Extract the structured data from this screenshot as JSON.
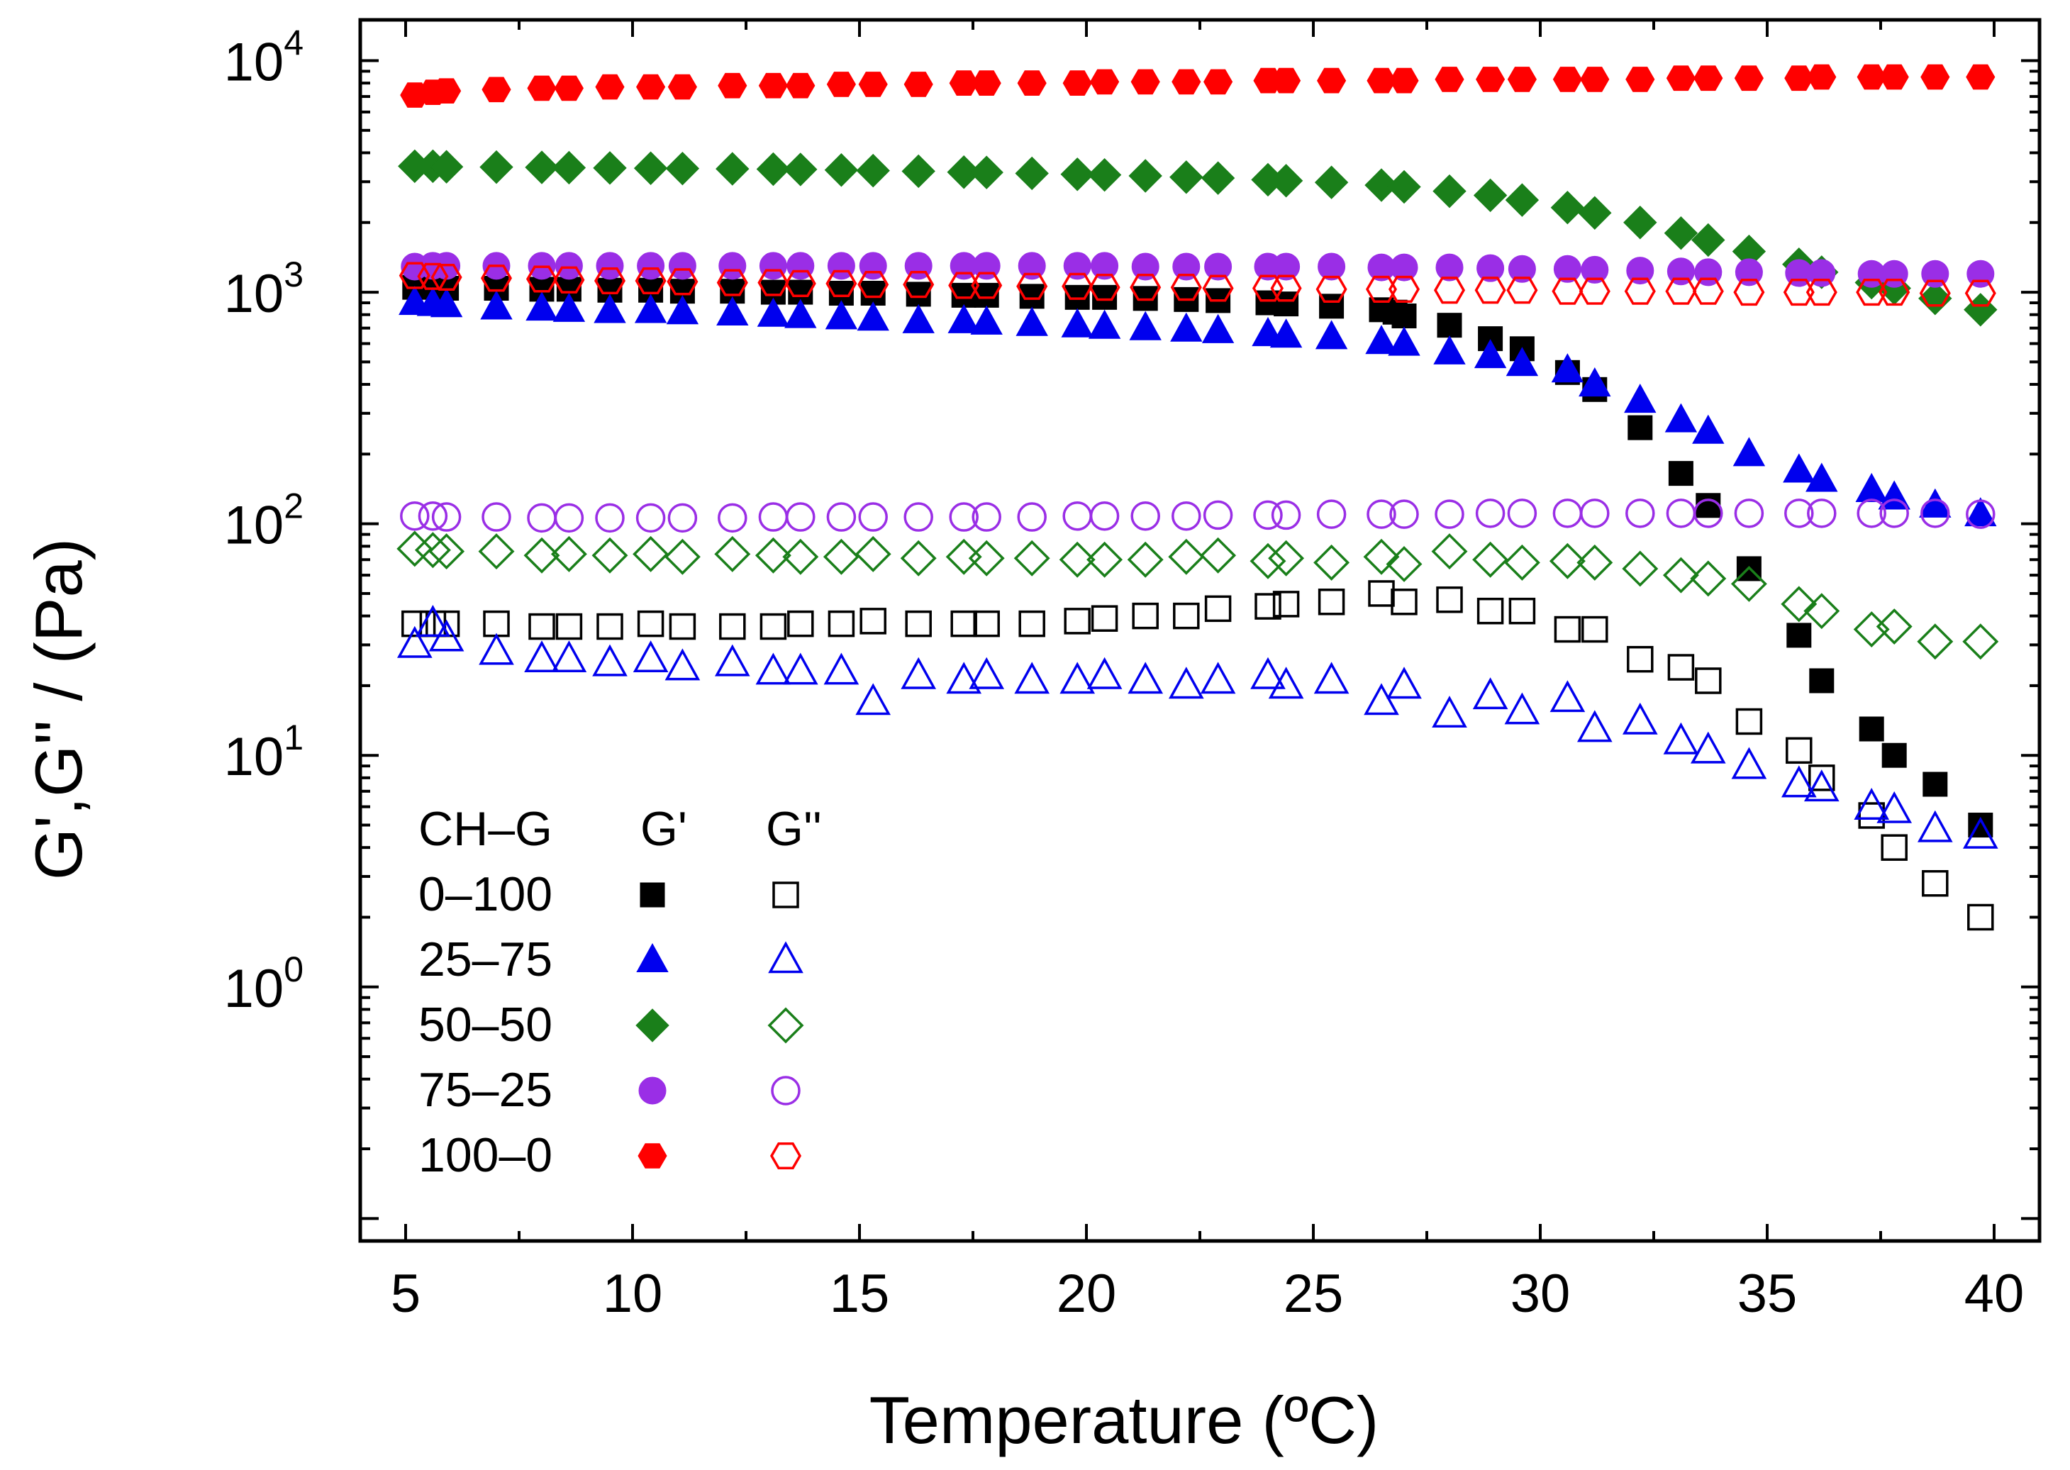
{
  "chart_data": {
    "type": "scatter",
    "title": "",
    "xlabel": "Temperature (ºC)",
    "ylabel": "G',G'' / (Pa)",
    "xlim": [
      4,
      41
    ],
    "ylim": [
      0.08,
      15000
    ],
    "yscale": "log",
    "grid": false,
    "x_ticks": [
      5,
      10,
      15,
      20,
      25,
      30,
      35,
      40
    ],
    "y_ticks": [
      {
        "value": 1,
        "base": "10",
        "exp": "0"
      },
      {
        "value": 10,
        "base": "10",
        "exp": "1"
      },
      {
        "value": 100,
        "base": "10",
        "exp": "2"
      },
      {
        "value": 1000,
        "base": "10",
        "exp": "3"
      },
      {
        "value": 10000,
        "base": "10",
        "exp": "4"
      }
    ],
    "legend": {
      "placement": "bottom-left",
      "header": [
        "CH–G",
        "G'",
        "G''"
      ]
    },
    "series": [
      {
        "name": "0–100",
        "modulus": "G'",
        "marker": "square",
        "filled": true,
        "color": "#000000",
        "x": [
          5.2,
          5.6,
          5.9,
          7.0,
          8.0,
          8.6,
          9.5,
          10.4,
          11.1,
          12.2,
          13.1,
          13.7,
          14.6,
          15.3,
          16.3,
          17.3,
          17.8,
          18.8,
          19.8,
          20.4,
          21.3,
          22.2,
          22.9,
          24.0,
          24.4,
          25.4,
          26.5,
          26.8,
          27.0,
          28.0,
          28.9,
          29.6,
          30.6,
          31.2,
          32.2,
          33.1,
          33.7,
          34.6,
          35.7,
          36.2,
          37.3,
          37.8,
          38.7,
          39.7
        ],
        "y": [
          1050,
          1050,
          1040,
          1040,
          1030,
          1030,
          1020,
          1020,
          1010,
          1010,
          1000,
          1000,
          990,
          990,
          980,
          970,
          970,
          960,
          950,
          950,
          940,
          930,
          920,
          900,
          890,
          870,
          840,
          820,
          790,
          720,
          630,
          570,
          450,
          380,
          260,
          165,
          120,
          64,
          33,
          21,
          13,
          10,
          7.5,
          5
        ]
      },
      {
        "name": "0–100",
        "modulus": "G''",
        "marker": "square",
        "filled": false,
        "color": "#000000",
        "x": [
          5.2,
          5.6,
          5.9,
          7.0,
          8.0,
          8.6,
          9.5,
          10.4,
          11.1,
          12.2,
          13.1,
          13.7,
          14.6,
          15.3,
          16.3,
          17.3,
          17.8,
          18.8,
          19.8,
          20.4,
          21.3,
          22.2,
          22.9,
          24.0,
          24.4,
          25.4,
          26.5,
          27.0,
          28.0,
          28.9,
          29.6,
          30.6,
          31.2,
          32.2,
          33.1,
          33.7,
          34.6,
          35.7,
          36.2,
          37.3,
          37.8,
          38.7,
          39.7
        ],
        "y": [
          37,
          37,
          37,
          37,
          36,
          36,
          36,
          37,
          36,
          36,
          36,
          37,
          37,
          38,
          37,
          37,
          37,
          37,
          38,
          39,
          40,
          40,
          43,
          44,
          45,
          46,
          50,
          46,
          47,
          42,
          42,
          35,
          35,
          26,
          24,
          21,
          14,
          10.5,
          8,
          5.5,
          4,
          2.8,
          2
        ]
      },
      {
        "name": "25–75",
        "modulus": "G'",
        "marker": "triangle",
        "filled": true,
        "color": "#0000ee",
        "x": [
          5.2,
          5.6,
          5.9,
          7.0,
          8.0,
          8.6,
          9.5,
          10.4,
          11.1,
          12.2,
          13.1,
          13.7,
          14.6,
          15.3,
          16.3,
          17.3,
          17.8,
          18.8,
          19.8,
          20.4,
          21.3,
          22.2,
          22.9,
          24.0,
          24.4,
          25.4,
          26.5,
          27.0,
          28.0,
          28.9,
          29.6,
          30.6,
          31.2,
          32.2,
          33.1,
          33.7,
          34.6,
          35.7,
          36.2,
          37.3,
          37.8,
          38.7,
          39.7
        ],
        "y": [
          900,
          890,
          880,
          860,
          850,
          840,
          830,
          830,
          820,
          810,
          800,
          790,
          780,
          770,
          750,
          750,
          740,
          730,
          720,
          710,
          700,
          690,
          680,
          660,
          650,
          640,
          610,
          600,
          550,
          530,
          490,
          460,
          400,
          340,
          280,
          250,
          200,
          170,
          155,
          140,
          130,
          120,
          110
        ]
      },
      {
        "name": "25–75",
        "modulus": "G''",
        "marker": "triangle",
        "filled": false,
        "color": "#0000ee",
        "x": [
          5.2,
          5.6,
          5.9,
          7.0,
          8.0,
          8.6,
          9.5,
          10.4,
          11.1,
          12.2,
          13.1,
          13.7,
          14.6,
          15.3,
          16.3,
          17.3,
          17.8,
          18.8,
          19.8,
          20.4,
          21.3,
          22.2,
          22.9,
          24.0,
          24.4,
          25.4,
          26.5,
          27.0,
          28.0,
          28.9,
          29.6,
          30.6,
          31.2,
          32.2,
          33.1,
          33.7,
          34.6,
          35.7,
          36.2,
          37.3,
          37.8,
          38.7,
          39.7
        ],
        "y": [
          30,
          37,
          32,
          28,
          26,
          26,
          25,
          26,
          24,
          25,
          23,
          23,
          23,
          17,
          22,
          21,
          22,
          21,
          21,
          22,
          21,
          20,
          21,
          22,
          20,
          21,
          17,
          20,
          15,
          18,
          15.5,
          17.5,
          13,
          14,
          11.5,
          10.5,
          9,
          7.5,
          7.2,
          6,
          5.8,
          4.8,
          4.5
        ]
      },
      {
        "name": "50–50",
        "modulus": "G'",
        "marker": "diamond",
        "filled": true,
        "color": "#1a7f1a",
        "x": [
          5.2,
          5.6,
          5.9,
          7.0,
          8.0,
          8.6,
          9.5,
          10.4,
          11.1,
          12.2,
          13.1,
          13.7,
          14.6,
          15.3,
          16.3,
          17.3,
          17.8,
          18.8,
          19.8,
          20.4,
          21.3,
          22.2,
          22.9,
          24.0,
          24.4,
          25.4,
          26.5,
          27.0,
          28.0,
          28.9,
          29.6,
          30.6,
          31.2,
          32.2,
          33.1,
          33.7,
          34.6,
          35.7,
          36.2,
          37.3,
          37.8,
          38.7,
          39.7
        ],
        "y": [
          3500,
          3500,
          3480,
          3470,
          3460,
          3450,
          3440,
          3430,
          3420,
          3410,
          3400,
          3390,
          3370,
          3350,
          3330,
          3300,
          3290,
          3260,
          3230,
          3210,
          3180,
          3140,
          3110,
          3060,
          3030,
          2980,
          2900,
          2850,
          2730,
          2620,
          2500,
          2320,
          2200,
          2000,
          1800,
          1680,
          1500,
          1320,
          1220,
          1100,
          1040,
          940,
          840
        ]
      },
      {
        "name": "50–50",
        "modulus": "G''",
        "marker": "diamond",
        "filled": false,
        "color": "#1a7f1a",
        "x": [
          5.2,
          5.6,
          5.9,
          7.0,
          8.0,
          8.6,
          9.5,
          10.4,
          11.1,
          12.2,
          13.1,
          13.7,
          14.6,
          15.3,
          16.3,
          17.3,
          17.8,
          18.8,
          19.8,
          20.4,
          21.3,
          22.2,
          22.9,
          24.0,
          24.4,
          25.4,
          26.5,
          27.0,
          28.0,
          28.9,
          29.6,
          30.6,
          31.2,
          32.2,
          33.1,
          33.7,
          34.6,
          35.7,
          36.2,
          37.3,
          37.8,
          38.7,
          39.7
        ],
        "y": [
          78,
          77,
          76,
          76,
          73,
          74,
          73,
          74,
          72,
          74,
          73,
          72,
          72,
          74,
          71,
          72,
          71,
          71,
          70,
          70,
          70,
          72,
          73,
          69,
          71,
          68,
          72,
          67,
          76,
          70,
          68,
          69,
          68,
          64,
          60,
          58,
          55,
          45,
          42,
          35,
          36,
          31,
          31
        ]
      },
      {
        "name": "75–25",
        "modulus": "G'",
        "marker": "circle",
        "filled": true,
        "color": "#9a2ee6",
        "x": [
          5.2,
          5.6,
          5.9,
          7.0,
          8.0,
          8.6,
          9.5,
          10.4,
          11.1,
          12.2,
          13.1,
          13.7,
          14.6,
          15.3,
          16.3,
          17.3,
          17.8,
          18.8,
          19.8,
          20.4,
          21.3,
          22.2,
          22.9,
          24.0,
          24.4,
          25.4,
          26.5,
          27.0,
          28.0,
          28.9,
          29.6,
          30.6,
          31.2,
          32.2,
          33.1,
          33.7,
          34.6,
          35.7,
          36.2,
          37.3,
          37.8,
          38.7,
          39.7
        ],
        "y": [
          1290,
          1300,
          1300,
          1300,
          1300,
          1300,
          1300,
          1300,
          1300,
          1300,
          1300,
          1300,
          1300,
          1300,
          1300,
          1300,
          1300,
          1300,
          1300,
          1300,
          1290,
          1290,
          1290,
          1290,
          1290,
          1290,
          1280,
          1280,
          1280,
          1270,
          1260,
          1260,
          1250,
          1240,
          1230,
          1220,
          1220,
          1210,
          1210,
          1200,
          1200,
          1200,
          1200
        ]
      },
      {
        "name": "75–25",
        "modulus": "G''",
        "marker": "circle",
        "filled": false,
        "color": "#9a2ee6",
        "x": [
          5.2,
          5.6,
          5.9,
          7.0,
          8.0,
          8.6,
          9.5,
          10.4,
          11.1,
          12.2,
          13.1,
          13.7,
          14.6,
          15.3,
          16.3,
          17.3,
          17.8,
          18.8,
          19.8,
          20.4,
          21.3,
          22.2,
          22.9,
          24.0,
          24.4,
          25.4,
          26.5,
          27.0,
          28.0,
          28.9,
          29.6,
          30.6,
          31.2,
          32.2,
          33.1,
          33.7,
          34.6,
          35.7,
          36.2,
          37.3,
          37.8,
          38.7,
          39.7
        ],
        "y": [
          108,
          108,
          107,
          107,
          106,
          106,
          106,
          106,
          106,
          106,
          107,
          107,
          107,
          107,
          107,
          107,
          107,
          107,
          108,
          108,
          108,
          108,
          109,
          109,
          109,
          110,
          110,
          110,
          110,
          111,
          111,
          111,
          111,
          111,
          111,
          111,
          111,
          111,
          111,
          111,
          111,
          111,
          110
        ]
      },
      {
        "name": "100–0",
        "modulus": "G'",
        "marker": "hexagon",
        "filled": true,
        "color": "#ff0000",
        "x": [
          5.2,
          5.6,
          5.9,
          7.0,
          8.0,
          8.6,
          9.5,
          10.4,
          11.1,
          12.2,
          13.1,
          13.7,
          14.6,
          15.3,
          16.3,
          17.3,
          17.8,
          18.8,
          19.8,
          20.4,
          21.3,
          22.2,
          22.9,
          24.0,
          24.4,
          25.4,
          26.5,
          27.0,
          28.0,
          28.9,
          29.6,
          30.6,
          31.2,
          32.2,
          33.1,
          33.7,
          34.6,
          35.7,
          36.2,
          37.3,
          37.8,
          38.7,
          39.7
        ],
        "y": [
          7100,
          7300,
          7400,
          7500,
          7600,
          7600,
          7700,
          7700,
          7700,
          7800,
          7800,
          7800,
          7900,
          7900,
          7900,
          8000,
          8000,
          8000,
          8000,
          8100,
          8100,
          8100,
          8100,
          8200,
          8200,
          8200,
          8200,
          8200,
          8300,
          8300,
          8300,
          8300,
          8300,
          8300,
          8400,
          8400,
          8400,
          8400,
          8500,
          8500,
          8500,
          8500,
          8500
        ]
      },
      {
        "name": "100–0",
        "modulus": "G''",
        "marker": "hexagon",
        "filled": false,
        "color": "#ff0000",
        "x": [
          5.2,
          5.6,
          5.9,
          7.0,
          8.0,
          8.6,
          9.5,
          10.4,
          11.1,
          12.2,
          13.1,
          13.7,
          14.6,
          15.3,
          16.3,
          17.3,
          17.8,
          18.8,
          19.8,
          20.4,
          21.3,
          22.2,
          22.9,
          24.0,
          24.4,
          25.4,
          26.5,
          27.0,
          28.0,
          28.9,
          29.6,
          30.6,
          31.2,
          32.2,
          33.1,
          33.7,
          34.6,
          35.7,
          36.2,
          37.3,
          37.8,
          38.7,
          39.7
        ],
        "y": [
          1180,
          1170,
          1160,
          1150,
          1140,
          1130,
          1120,
          1120,
          1110,
          1100,
          1100,
          1090,
          1090,
          1080,
          1080,
          1070,
          1070,
          1060,
          1060,
          1050,
          1050,
          1050,
          1040,
          1040,
          1040,
          1030,
          1030,
          1030,
          1020,
          1020,
          1020,
          1010,
          1010,
          1010,
          1010,
          1010,
          1000,
          1000,
          1000,
          1000,
          1000,
          990,
          990
        ]
      }
    ]
  }
}
